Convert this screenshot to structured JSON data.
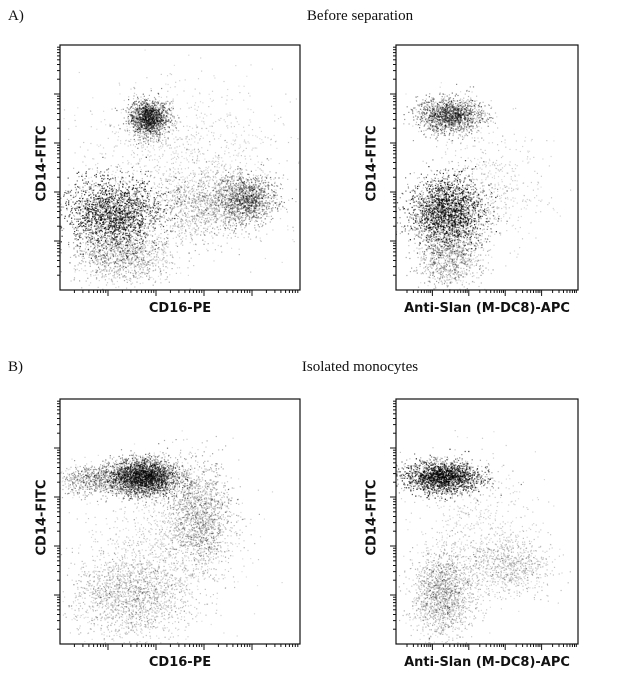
{
  "panels": [
    {
      "letter": "A)",
      "title": "Before separation"
    },
    {
      "letter": "B)",
      "title": "Isolated monocytes"
    }
  ],
  "chart_data": [
    {
      "type": "scatter",
      "panel": "A",
      "xlabel": "CD16-PE",
      "ylabel": "CD14-FITC",
      "x_scale": "log",
      "y_scale": "log",
      "xlim": [
        0,
        5
      ],
      "ylim": [
        0,
        5
      ],
      "grid": false,
      "populations": [
        {
          "x": 1.85,
          "y": 3.5,
          "sx": 0.2,
          "sy": 0.18,
          "n": 1600,
          "darkness": 0.95
        },
        {
          "x": 1.1,
          "y": 1.55,
          "sx": 0.5,
          "sy": 0.35,
          "n": 3600,
          "darkness": 0.9
        },
        {
          "x": 3.9,
          "y": 1.85,
          "sx": 0.3,
          "sy": 0.25,
          "n": 1300,
          "darkness": 0.85
        },
        {
          "x": 3.0,
          "y": 1.7,
          "sx": 0.5,
          "sy": 0.35,
          "n": 1000,
          "darkness": 0.45
        },
        {
          "x": 1.3,
          "y": 0.7,
          "sx": 0.5,
          "sy": 0.3,
          "n": 1100,
          "darkness": 0.5
        },
        {
          "x": 2.5,
          "y": 2.6,
          "sx": 1.0,
          "sy": 0.8,
          "n": 1100,
          "darkness": 0.2
        }
      ]
    },
    {
      "type": "scatter",
      "panel": "A",
      "xlabel": "Anti-Slan (M-DC8)-APC",
      "ylabel": "CD14-FITC",
      "x_scale": "log",
      "y_scale": "log",
      "xlim": [
        0,
        5
      ],
      "ylim": [
        0,
        5
      ],
      "grid": false,
      "populations": [
        {
          "x": 1.5,
          "y": 3.55,
          "sx": 0.45,
          "sy": 0.18,
          "n": 1600,
          "darkness": 0.9
        },
        {
          "x": 1.4,
          "y": 1.6,
          "sx": 0.5,
          "sy": 0.35,
          "n": 3600,
          "darkness": 0.95
        },
        {
          "x": 1.5,
          "y": 0.7,
          "sx": 0.4,
          "sy": 0.35,
          "n": 1000,
          "darkness": 0.55
        },
        {
          "x": 2.6,
          "y": 2.0,
          "sx": 0.7,
          "sy": 0.6,
          "n": 500,
          "darkness": 0.2
        }
      ]
    },
    {
      "type": "scatter",
      "panel": "B",
      "xlabel": "CD16-PE",
      "ylabel": "CD14-FITC",
      "x_scale": "log",
      "y_scale": "log",
      "xlim": [
        0,
        5
      ],
      "ylim": [
        0,
        5
      ],
      "grid": false,
      "populations": [
        {
          "x": 1.75,
          "y": 3.4,
          "sx": 0.35,
          "sy": 0.18,
          "n": 3200,
          "darkness": 1.0
        },
        {
          "x": 0.7,
          "y": 3.35,
          "sx": 0.4,
          "sy": 0.15,
          "n": 700,
          "darkness": 0.6
        },
        {
          "x": 2.9,
          "y": 2.6,
          "sx": 0.35,
          "sy": 0.55,
          "n": 1500,
          "darkness": 0.5
        },
        {
          "x": 1.5,
          "y": 1.0,
          "sx": 0.6,
          "sy": 0.45,
          "n": 1800,
          "darkness": 0.35
        },
        {
          "x": 2.2,
          "y": 2.2,
          "sx": 0.8,
          "sy": 0.7,
          "n": 700,
          "darkness": 0.2
        }
      ]
    },
    {
      "type": "scatter",
      "panel": "B",
      "xlabel": "Anti-Slan (M-DC8)-APC",
      "ylabel": "CD14-FITC",
      "x_scale": "log",
      "y_scale": "log",
      "xlim": [
        0,
        5
      ],
      "ylim": [
        0,
        5
      ],
      "grid": false,
      "populations": [
        {
          "x": 1.3,
          "y": 3.4,
          "sx": 0.5,
          "sy": 0.16,
          "n": 3000,
          "darkness": 1.0
        },
        {
          "x": 1.3,
          "y": 1.0,
          "sx": 0.4,
          "sy": 0.45,
          "n": 1600,
          "darkness": 0.4
        },
        {
          "x": 3.1,
          "y": 1.6,
          "sx": 0.6,
          "sy": 0.3,
          "n": 800,
          "darkness": 0.3
        },
        {
          "x": 2.2,
          "y": 2.4,
          "sx": 0.8,
          "sy": 0.7,
          "n": 500,
          "darkness": 0.2
        }
      ]
    }
  ]
}
